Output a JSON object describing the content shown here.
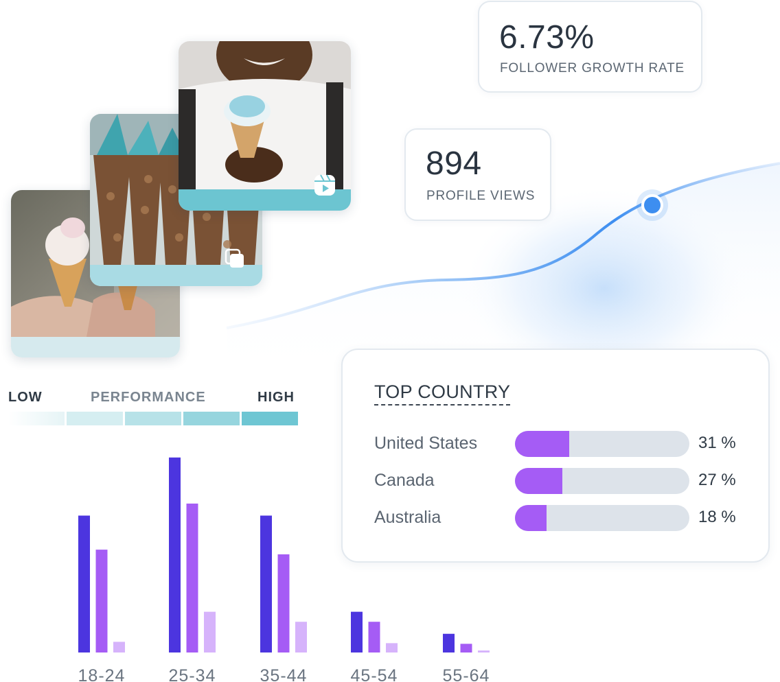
{
  "stats": {
    "growth": {
      "value": "6.73%",
      "label": "FOLLOWER GROWTH RATE"
    },
    "views": {
      "value": "894",
      "label": "PROFILE VIEWS"
    }
  },
  "performance": {
    "low": "LOW",
    "title": "PERFORMANCE",
    "high": "HIGH"
  },
  "colors": {
    "bar_dark": "#4c35df",
    "bar_mid": "#a55cf5",
    "bar_light": "#d6b3fb",
    "accent_blue": "#3d8ef0",
    "teal": "#6ec6d3",
    "progress_fill": "#a55cf5",
    "progress_track": "#dde3ea"
  },
  "icons": {
    "reel": "reels-icon",
    "carousel": "carousel-icon"
  },
  "top_country": {
    "title": "TOP COUNTRY",
    "rows": [
      {
        "name": "United States",
        "percent": 31,
        "label": "31 %"
      },
      {
        "name": "Canada",
        "percent": 27,
        "label": "27 %"
      },
      {
        "name": "Australia",
        "percent": 18,
        "label": "18 %"
      }
    ]
  },
  "chart_data": {
    "type": "bar",
    "categories": [
      "18-24",
      "25-34",
      "35-44",
      "45-54",
      "55-64"
    ],
    "series": [
      {
        "values": [
          205,
          292,
          205,
          61,
          28
        ]
      },
      {
        "values": [
          154,
          223,
          147,
          46,
          13
        ]
      },
      {
        "values": [
          16,
          61,
          46,
          14,
          3
        ]
      }
    ],
    "ylim": [
      0,
      300
    ]
  }
}
